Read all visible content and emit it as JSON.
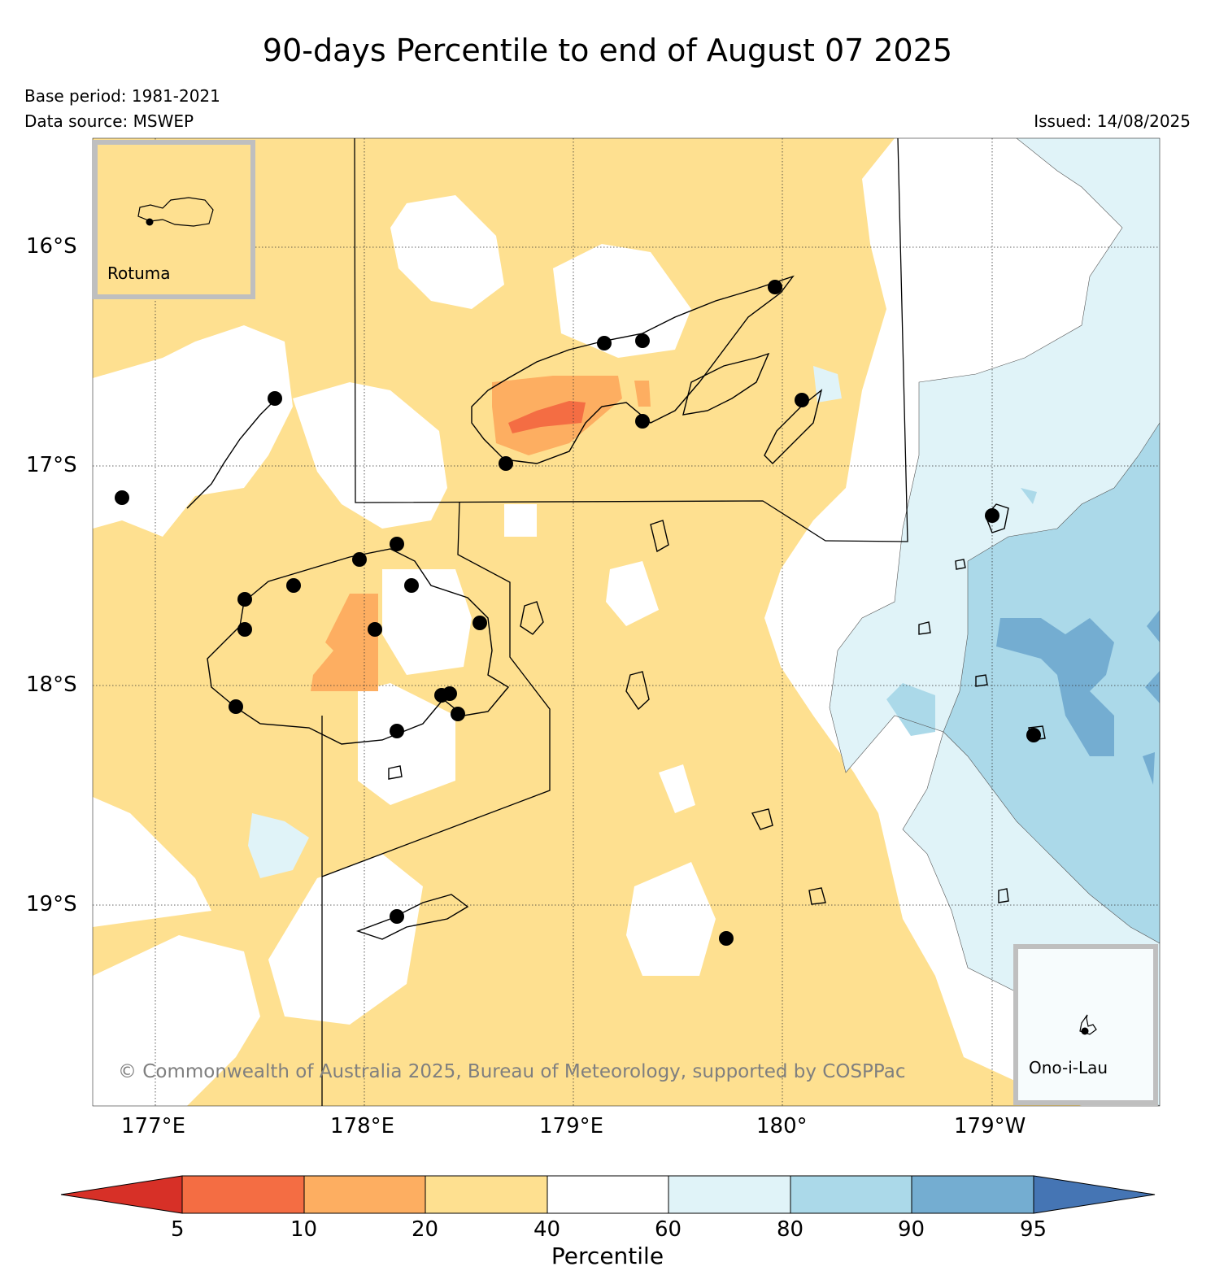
{
  "title": "90-days Percentile to end of August 07 2025",
  "base_period": "Base period: 1981-2021",
  "data_source": "Data source: MSWEP",
  "issued": "Issued: 14/08/2025",
  "copyright": "© Commonwealth of Australia 2025, Bureau of Meteorology, supported by COSPPac",
  "axes": {
    "lat_labels": [
      "16°S",
      "17°S",
      "18°S",
      "19°S"
    ],
    "lon_labels": [
      "177°E",
      "178°E",
      "179°E",
      "180°",
      "179°W"
    ],
    "lat_range": [
      -19.92,
      -15.5
    ],
    "lon_range": [
      176.7,
      181.8
    ],
    "grid": "dotted"
  },
  "insets": {
    "rotuma": "Rotuma",
    "ono": "Ono-i-Lau"
  },
  "colorbar": {
    "label": "Percentile",
    "ticks": [
      "5",
      "10",
      "20",
      "40",
      "60",
      "80",
      "90",
      "95"
    ],
    "colors": {
      "below_5": "#d73027",
      "5_10": "#f46d43",
      "10_20": "#fdae61",
      "20_40": "#fee090",
      "40_60": "#ffffff",
      "60_80": "#e0f3f8",
      "80_90": "#abd9e9",
      "90_95": "#74add1",
      "above_95": "#4575b4"
    }
  }
}
